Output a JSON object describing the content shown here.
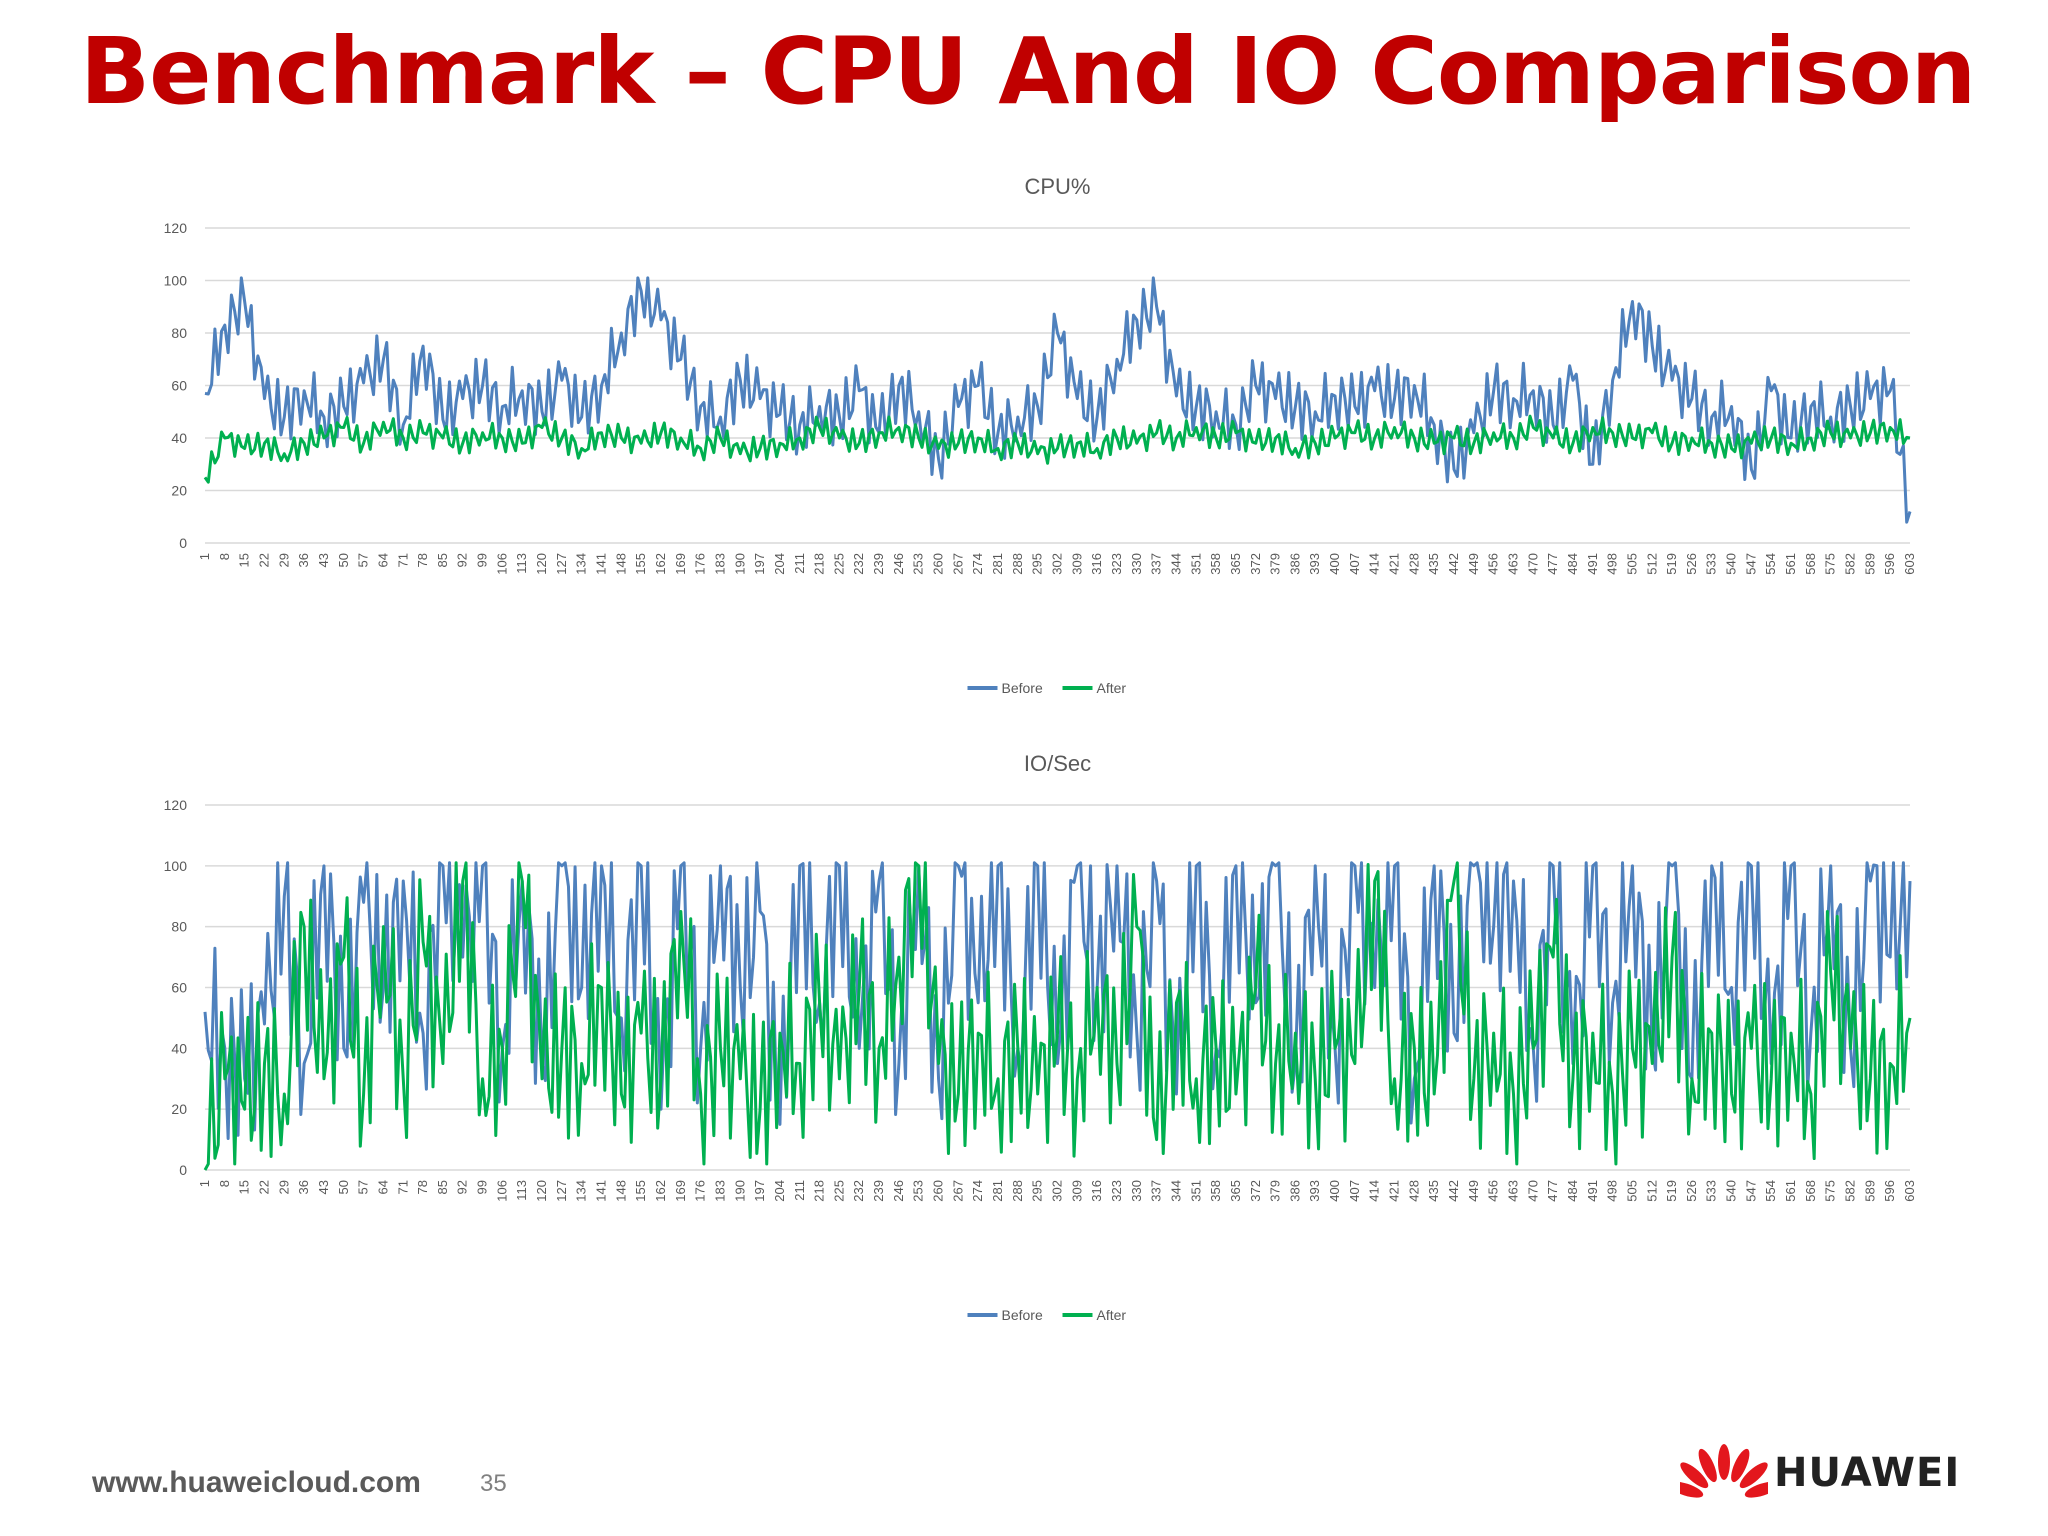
{
  "slide": {
    "title": "Benchmark – CPU And IO Comparison",
    "url": "www.huaweicloud.com",
    "page_number": "35",
    "brand": "HUAWEI"
  },
  "colors": {
    "title": "#c00000",
    "before": "#4f81bd",
    "after": "#00b050",
    "grid": "#d9d9d9",
    "axis_text": "#595959"
  },
  "chart_data": [
    {
      "type": "line",
      "title": "CPU%",
      "x_range": [
        1,
        603
      ],
      "x_tick_step": 7,
      "ylim": [
        0,
        120
      ],
      "y_ticks": [
        0,
        20,
        40,
        60,
        80,
        100,
        120
      ],
      "grid": true,
      "legend": "bottom-center",
      "series": [
        {
          "name": "Before",
          "color": "#4f81bd",
          "x": [
            1,
            8,
            15,
            22,
            29,
            36,
            43,
            50,
            57,
            64,
            71,
            78,
            85,
            92,
            99,
            106,
            113,
            120,
            127,
            134,
            141,
            148,
            155,
            162,
            169,
            176,
            183,
            190,
            197,
            204,
            211,
            218,
            225,
            232,
            239,
            246,
            253,
            260,
            267,
            274,
            281,
            288,
            295,
            302,
            309,
            316,
            323,
            330,
            337,
            344,
            351,
            358,
            365,
            372,
            379,
            386,
            393,
            400,
            407,
            414,
            421,
            428,
            435,
            442,
            449,
            456,
            463,
            470,
            477,
            484,
            491,
            498,
            505,
            512,
            519,
            526,
            533,
            540,
            547,
            554,
            561,
            568,
            575,
            582,
            589,
            596,
            603
          ],
          "values": [
            57,
            83,
            92,
            55,
            48,
            58,
            48,
            52,
            61,
            70,
            45,
            75,
            47,
            55,
            60,
            52,
            58,
            50,
            62,
            48,
            60,
            80,
            96,
            85,
            70,
            52,
            48,
            62,
            55,
            49,
            45,
            52,
            48,
            58,
            42,
            60,
            50,
            32,
            52,
            60,
            42,
            48,
            52,
            80,
            55,
            48,
            70,
            85,
            90,
            56,
            52,
            50,
            45,
            60,
            55,
            52,
            50,
            56,
            52,
            58,
            55,
            60,
            45,
            28,
            42,
            58,
            55,
            58,
            45,
            62,
            30,
            62,
            92,
            75,
            62,
            55,
            48,
            52,
            28,
            58,
            40,
            52,
            48,
            52,
            55,
            58,
            12
          ]
        },
        {
          "name": "After",
          "color": "#00b050",
          "x": [
            1,
            8,
            15,
            22,
            29,
            36,
            43,
            50,
            57,
            64,
            71,
            78,
            85,
            92,
            99,
            106,
            113,
            120,
            127,
            134,
            141,
            148,
            155,
            162,
            169,
            176,
            183,
            190,
            197,
            204,
            211,
            218,
            225,
            232,
            239,
            246,
            253,
            260,
            267,
            274,
            281,
            288,
            295,
            302,
            309,
            316,
            323,
            330,
            337,
            344,
            351,
            358,
            365,
            372,
            379,
            386,
            393,
            400,
            407,
            414,
            421,
            428,
            435,
            442,
            449,
            456,
            463,
            470,
            477,
            484,
            491,
            498,
            505,
            512,
            519,
            526,
            533,
            540,
            547,
            554,
            561,
            568,
            575,
            582,
            589,
            596,
            603
          ],
          "values": [
            25,
            40,
            36,
            38,
            34,
            38,
            40,
            44,
            38,
            46,
            40,
            42,
            40,
            38,
            42,
            40,
            38,
            44,
            40,
            36,
            42,
            40,
            38,
            42,
            40,
            36,
            40,
            34,
            36,
            38,
            40,
            44,
            40,
            38,
            42,
            44,
            40,
            36,
            38,
            40,
            36,
            38,
            34,
            36,
            38,
            36,
            40,
            38,
            42,
            40,
            44,
            40,
            42,
            38,
            40,
            36,
            38,
            40,
            42,
            40,
            44,
            40,
            38,
            40,
            38,
            42,
            40,
            44,
            40,
            38,
            44,
            42,
            40,
            42,
            38,
            40,
            38,
            36,
            38,
            40,
            38,
            40,
            42,
            40,
            42,
            44,
            40
          ]
        }
      ]
    },
    {
      "type": "line",
      "title": "IO/Sec",
      "x_range": [
        1,
        603
      ],
      "x_tick_step": 7,
      "ylim": [
        0,
        120
      ],
      "y_ticks": [
        0,
        20,
        40,
        60,
        80,
        100,
        120
      ],
      "grid": true,
      "legend": "bottom-center",
      "series": [
        {
          "name": "Before",
          "color": "#4f81bd",
          "x": [
            1,
            8,
            15,
            22,
            29,
            36,
            43,
            50,
            57,
            64,
            71,
            78,
            85,
            92,
            99,
            106,
            113,
            120,
            127,
            134,
            141,
            148,
            155,
            162,
            169,
            176,
            183,
            190,
            197,
            204,
            211,
            218,
            225,
            232,
            239,
            246,
            253,
            260,
            267,
            274,
            281,
            288,
            295,
            302,
            309,
            316,
            323,
            330,
            337,
            344,
            351,
            358,
            365,
            372,
            379,
            386,
            393,
            400,
            407,
            414,
            421,
            428,
            435,
            442,
            449,
            456,
            463,
            470,
            477,
            484,
            491,
            498,
            505,
            512,
            519,
            526,
            533,
            540,
            547,
            554,
            561,
            568,
            575,
            582,
            589,
            596,
            603
          ],
          "values": [
            52,
            40,
            30,
            48,
            90,
            35,
            100,
            40,
            88,
            60,
            95,
            45,
            100,
            70,
            100,
            40,
            95,
            35,
            100,
            60,
            100,
            50,
            100,
            20,
            100,
            40,
            100,
            60,
            85,
            15,
            100,
            55,
            100,
            40,
            95,
            35,
            100,
            30,
            100,
            55,
            100,
            40,
            100,
            35,
            100,
            60,
            100,
            45,
            95,
            25,
            100,
            40,
            100,
            55,
            100,
            35,
            100,
            40,
            100,
            60,
            100,
            30,
            100,
            45,
            100,
            80,
            95,
            40,
            100,
            35,
            100,
            55,
            100,
            40,
            100,
            30,
            100,
            60,
            100,
            35,
            100,
            45,
            100,
            40,
            95,
            70,
            95
          ]
        },
        {
          "name": "After",
          "color": "#00b050",
          "x": [
            1,
            8,
            15,
            22,
            29,
            36,
            43,
            50,
            57,
            64,
            71,
            78,
            85,
            92,
            99,
            106,
            113,
            120,
            127,
            134,
            141,
            148,
            155,
            162,
            169,
            176,
            183,
            190,
            197,
            204,
            211,
            218,
            225,
            232,
            239,
            246,
            253,
            260,
            267,
            274,
            281,
            288,
            295,
            302,
            309,
            316,
            323,
            330,
            337,
            344,
            351,
            358,
            365,
            372,
            379,
            386,
            393,
            400,
            407,
            414,
            421,
            428,
            435,
            442,
            449,
            456,
            463,
            470,
            477,
            484,
            491,
            498,
            505,
            512,
            519,
            526,
            533,
            540,
            547,
            554,
            561,
            568,
            575,
            582,
            589,
            596,
            603
          ],
          "values": [
            0,
            30,
            20,
            35,
            25,
            80,
            30,
            70,
            25,
            80,
            30,
            75,
            35,
            95,
            30,
            40,
            95,
            30,
            40,
            35,
            60,
            25,
            45,
            30,
            85,
            25,
            40,
            30,
            20,
            45,
            35,
            55,
            30,
            60,
            40,
            70,
            100,
            35,
            25,
            45,
            30,
            40,
            25,
            45,
            30,
            60,
            35,
            80,
            10,
            55,
            30,
            40,
            25,
            60,
            35,
            45,
            30,
            40,
            35,
            95,
            30,
            40,
            25,
            95,
            30,
            45,
            25,
            40,
            70,
            30,
            45,
            25,
            40,
            35,
            70,
            30,
            45,
            25,
            40,
            30,
            45,
            25,
            65,
            40,
            30,
            35,
            50
          ]
        }
      ]
    }
  ]
}
